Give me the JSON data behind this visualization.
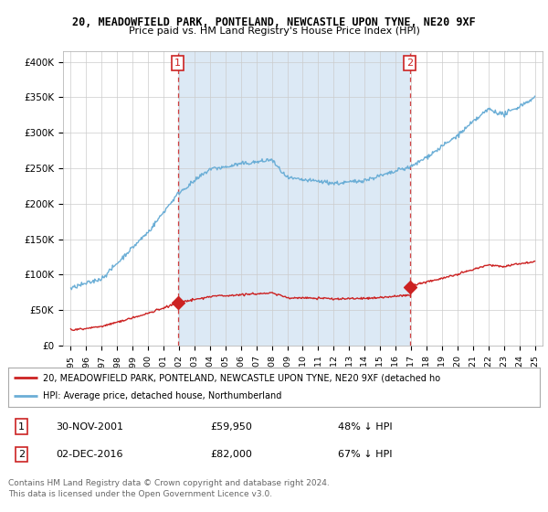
{
  "title1": "20, MEADOWFIELD PARK, PONTELAND, NEWCASTLE UPON TYNE, NE20 9XF",
  "title2": "Price paid vs. HM Land Registry's House Price Index (HPI)",
  "bg_color": "#dce9f5",
  "plot_bg_color_outer": "#ffffff",
  "hpi_color": "#6baed6",
  "price_color": "#cc2222",
  "vline_color": "#cc2222",
  "yticks": [
    0,
    50000,
    100000,
    150000,
    200000,
    250000,
    300000,
    350000,
    400000
  ],
  "ytick_labels": [
    "£0",
    "£50K",
    "£100K",
    "£150K",
    "£200K",
    "£250K",
    "£300K",
    "£350K",
    "£400K"
  ],
  "sale1_year": 2001.917,
  "sale1_price": 59950,
  "sale2_year": 2016.917,
  "sale2_price": 82000,
  "legend_label1": "20, MEADOWFIELD PARK, PONTELAND, NEWCASTLE UPON TYNE, NE20 9XF (detached ho",
  "legend_label2": "HPI: Average price, detached house, Northumberland",
  "table_row1": [
    "1",
    "30-NOV-2001",
    "£59,950",
    "48% ↓ HPI"
  ],
  "table_row2": [
    "2",
    "02-DEC-2016",
    "£82,000",
    "67% ↓ HPI"
  ],
  "footer1": "Contains HM Land Registry data © Crown copyright and database right 2024.",
  "footer2": "This data is licensed under the Open Government Licence v3.0."
}
